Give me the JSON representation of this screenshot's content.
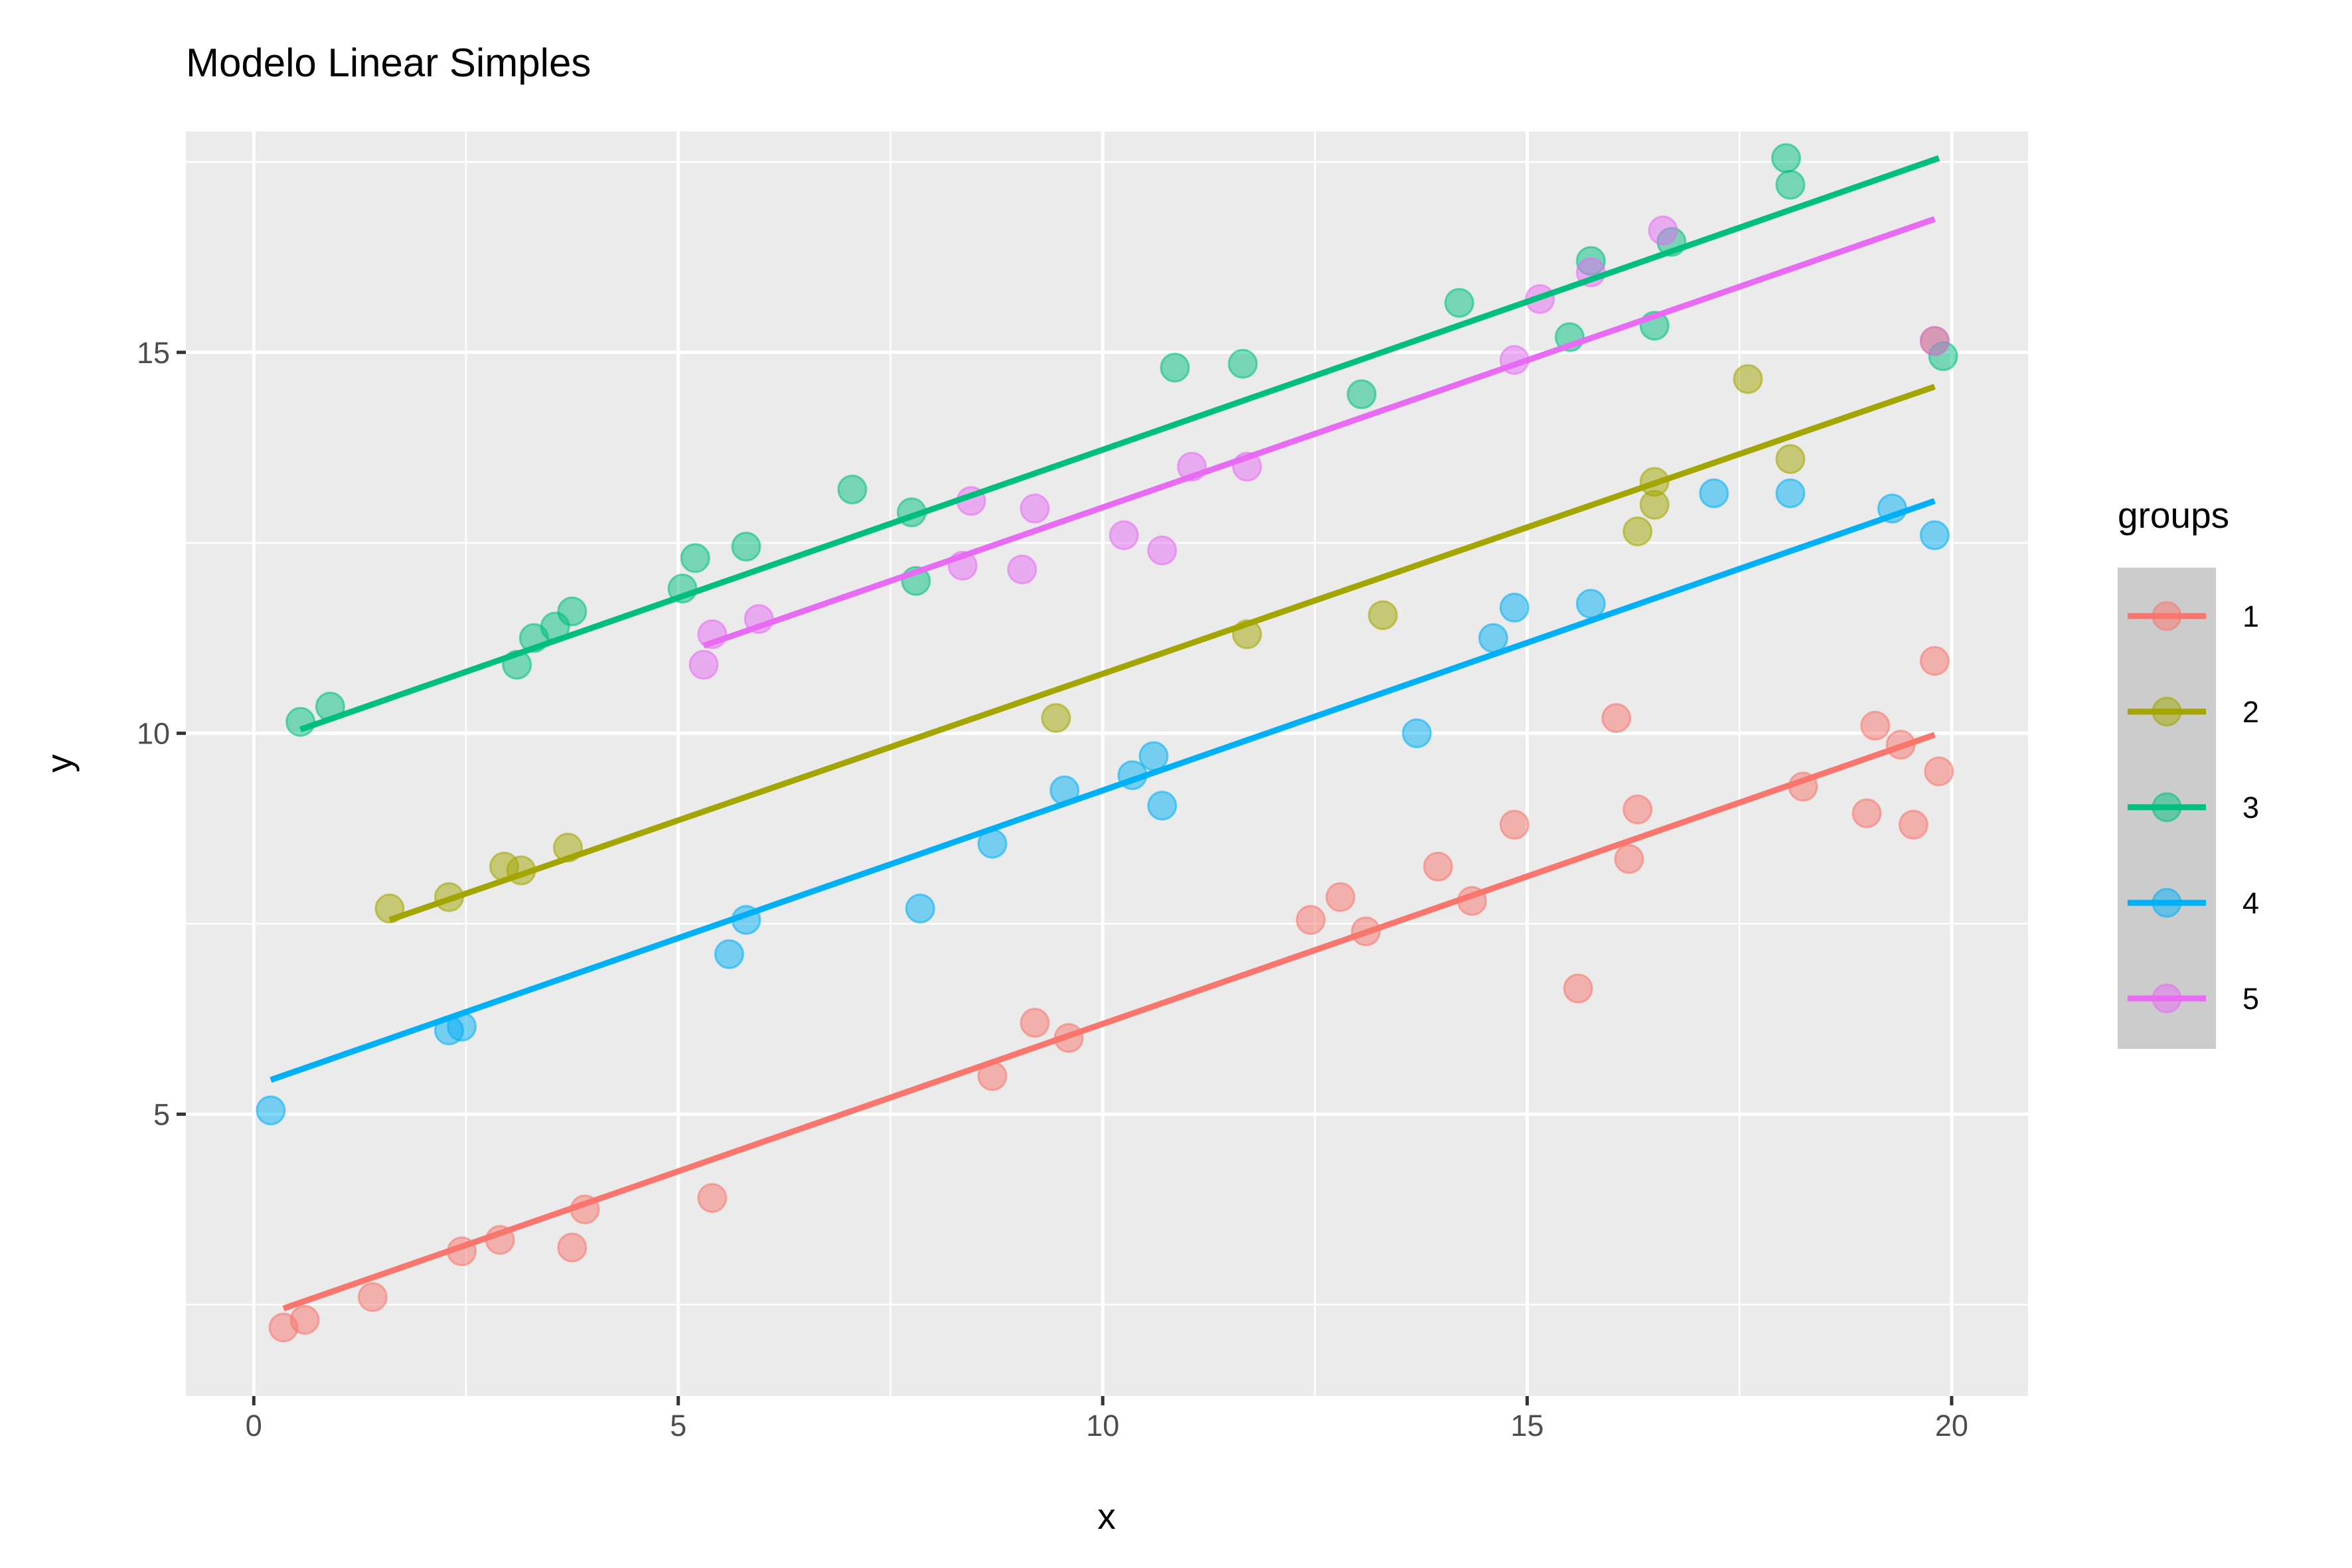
{
  "chart_data": {
    "type": "scatter",
    "title": "Modelo Linear Simples",
    "xlabel": "x",
    "ylabel": "y",
    "xlim": [
      -0.8,
      20.9
    ],
    "ylim": [
      1.3,
      17.9
    ],
    "xticks": [
      0,
      5,
      10,
      15,
      20
    ],
    "yticks": [
      5,
      10,
      15
    ],
    "grid": true,
    "legend": {
      "title": "groups",
      "position": "right",
      "entries": [
        "1",
        "2",
        "3",
        "4",
        "5"
      ]
    },
    "series": [
      {
        "name": "1",
        "color": "#F8766D",
        "fit": {
          "x": [
            0.35,
            19.8
          ],
          "y": [
            2.45,
            9.98
          ]
        },
        "points": [
          [
            0.35,
            2.2
          ],
          [
            0.6,
            2.3
          ],
          [
            1.4,
            2.6
          ],
          [
            2.45,
            3.2
          ],
          [
            2.9,
            3.35
          ],
          [
            3.75,
            3.25
          ],
          [
            3.9,
            3.75
          ],
          [
            5.4,
            3.9
          ],
          [
            8.7,
            5.5
          ],
          [
            9.2,
            6.2
          ],
          [
            9.6,
            6.0
          ],
          [
            12.45,
            7.55
          ],
          [
            12.8,
            7.85
          ],
          [
            13.1,
            7.4
          ],
          [
            13.95,
            8.25
          ],
          [
            14.35,
            7.8
          ],
          [
            14.85,
            8.8
          ],
          [
            15.6,
            6.65
          ],
          [
            16.05,
            10.2
          ],
          [
            16.2,
            8.35
          ],
          [
            16.3,
            9.0
          ],
          [
            18.25,
            9.3
          ],
          [
            19.0,
            8.95
          ],
          [
            19.1,
            10.1
          ],
          [
            19.4,
            9.85
          ],
          [
            19.55,
            8.8
          ],
          [
            19.8,
            10.95
          ],
          [
            19.85,
            9.5
          ]
        ]
      },
      {
        "name": "2",
        "color": "#A3A500",
        "fit": {
          "x": [
            1.6,
            19.8
          ],
          "y": [
            7.55,
            14.55
          ]
        },
        "points": [
          [
            1.6,
            7.7
          ],
          [
            2.3,
            7.85
          ],
          [
            2.95,
            8.25
          ],
          [
            3.15,
            8.2
          ],
          [
            3.7,
            8.5
          ],
          [
            9.45,
            10.2
          ],
          [
            11.7,
            11.3
          ],
          [
            13.3,
            11.55
          ],
          [
            16.3,
            12.65
          ],
          [
            16.5,
            13.0
          ],
          [
            16.5,
            13.3
          ],
          [
            17.6,
            14.65
          ],
          [
            18.1,
            13.6
          ],
          [
            19.8,
            15.15
          ]
        ]
      },
      {
        "name": "3",
        "color": "#00BF7D",
        "fit": {
          "x": [
            0.55,
            19.85
          ],
          "y": [
            10.05,
            17.55
          ]
        },
        "points": [
          [
            0.55,
            10.15
          ],
          [
            0.9,
            10.35
          ],
          [
            3.1,
            10.9
          ],
          [
            3.3,
            11.25
          ],
          [
            3.55,
            11.4
          ],
          [
            3.75,
            11.6
          ],
          [
            5.05,
            11.9
          ],
          [
            5.2,
            12.3
          ],
          [
            5.8,
            12.45
          ],
          [
            7.05,
            13.2
          ],
          [
            7.75,
            12.9
          ],
          [
            7.8,
            12.0
          ],
          [
            10.85,
            14.8
          ],
          [
            11.65,
            14.85
          ],
          [
            13.05,
            14.45
          ],
          [
            14.2,
            15.65
          ],
          [
            15.5,
            15.2
          ],
          [
            15.75,
            16.2
          ],
          [
            16.5,
            15.35
          ],
          [
            16.7,
            16.45
          ],
          [
            18.05,
            17.55
          ],
          [
            18.1,
            17.2
          ],
          [
            19.9,
            14.95
          ]
        ]
      },
      {
        "name": "4",
        "color": "#00B0F6",
        "fit": {
          "x": [
            0.2,
            19.8
          ],
          "y": [
            5.45,
            13.05
          ]
        },
        "points": [
          [
            0.2,
            5.05
          ],
          [
            2.3,
            6.1
          ],
          [
            2.45,
            6.15
          ],
          [
            5.6,
            7.1
          ],
          [
            5.8,
            7.55
          ],
          [
            7.85,
            7.7
          ],
          [
            8.7,
            8.55
          ],
          [
            9.55,
            9.25
          ],
          [
            10.35,
            9.45
          ],
          [
            10.6,
            9.7
          ],
          [
            10.7,
            9.05
          ],
          [
            13.7,
            10.0
          ],
          [
            14.6,
            11.25
          ],
          [
            14.85,
            11.65
          ],
          [
            15.75,
            11.7
          ],
          [
            17.2,
            13.15
          ],
          [
            18.1,
            13.15
          ],
          [
            19.3,
            12.95
          ],
          [
            19.8,
            12.6
          ]
        ]
      },
      {
        "name": "5",
        "color": "#E76BF3",
        "fit": {
          "x": [
            5.3,
            19.8
          ],
          "y": [
            11.15,
            16.75
          ]
        },
        "points": [
          [
            5.3,
            10.9
          ],
          [
            5.4,
            11.3
          ],
          [
            5.95,
            11.5
          ],
          [
            8.35,
            12.2
          ],
          [
            8.45,
            13.05
          ],
          [
            9.05,
            12.15
          ],
          [
            9.2,
            12.95
          ],
          [
            10.25,
            12.6
          ],
          [
            10.7,
            12.4
          ],
          [
            11.05,
            13.5
          ],
          [
            11.7,
            13.5
          ],
          [
            14.85,
            14.9
          ],
          [
            15.15,
            15.7
          ],
          [
            15.75,
            16.05
          ],
          [
            16.6,
            16.6
          ],
          [
            19.8,
            15.15
          ]
        ]
      }
    ]
  }
}
